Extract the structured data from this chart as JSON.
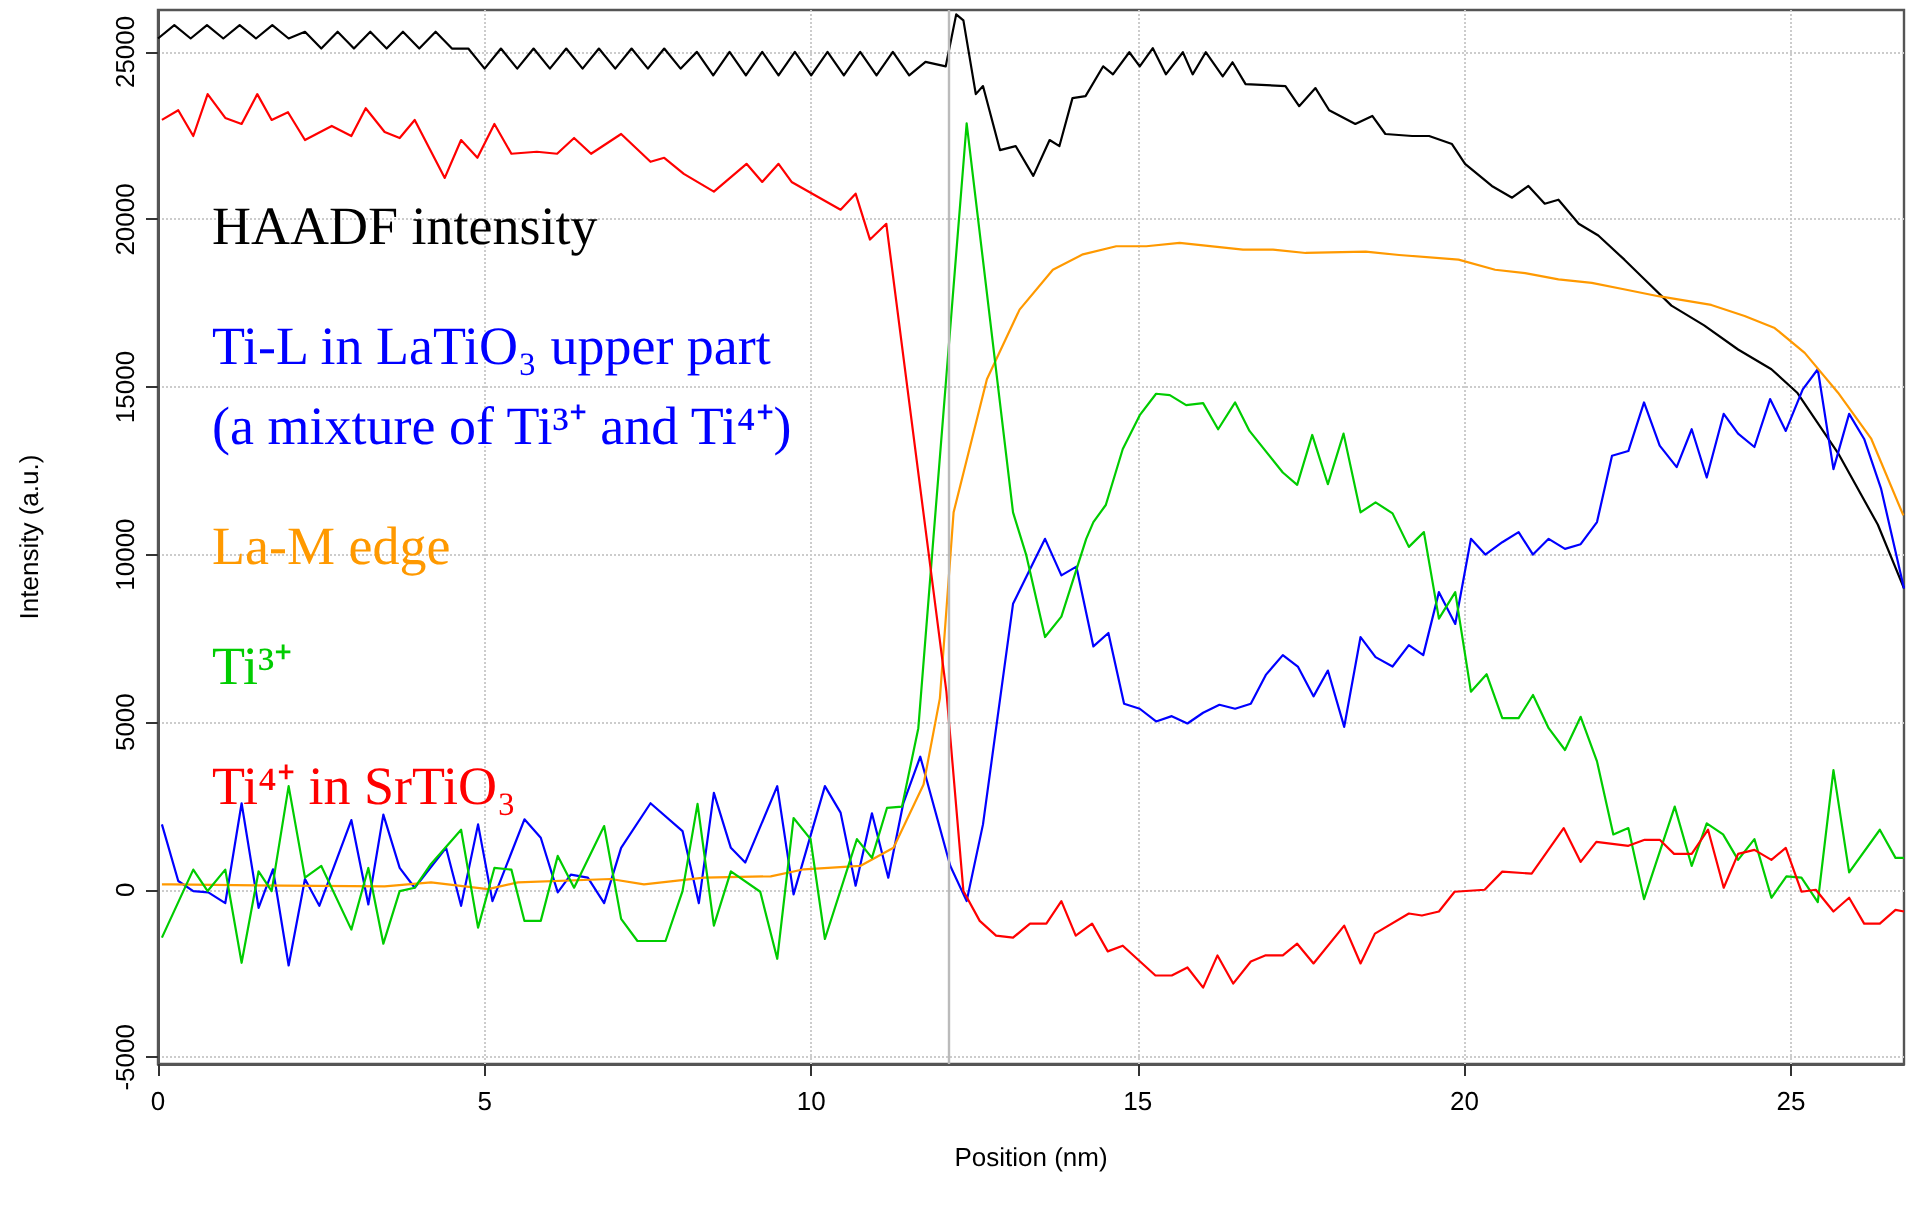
{
  "chart_data": {
    "type": "line",
    "xlabel": "Position (nm)",
    "ylabel": "Intensity (a.u.)",
    "xlim": [
      0,
      26.73
    ],
    "xticks": [
      0,
      5,
      10,
      15,
      20,
      25
    ],
    "ylim": [
      -5200,
      26250
    ],
    "yticks": [
      -5000,
      0,
      5000,
      10000,
      15000,
      20000,
      25000
    ],
    "grid": true,
    "legend": "top left",
    "marker": "none",
    "line_style": "solid",
    "ref_lines": [
      {
        "axis": "x",
        "value": 12.1,
        "color": "#bbbbbb"
      }
    ],
    "series": [
      {
        "name": "HAADF intensity",
        "color": "#000000",
        "x": [
          0,
          0.25,
          0.5,
          0.75,
          1,
          1.25,
          1.5,
          1.75,
          2,
          2.25,
          2.5,
          2.75,
          3,
          3.25,
          3.5,
          3.75,
          4,
          4.25,
          4.5,
          4.75,
          5,
          5.25,
          5.5,
          5.75,
          6,
          6.25,
          6.5,
          6.75,
          7,
          7.25,
          7.5,
          7.75,
          8,
          8.25,
          8.5,
          8.75,
          9,
          9.25,
          9.5,
          9.75,
          10,
          10.25,
          10.5,
          10.75,
          11,
          11.25,
          11.5,
          11.75,
          12.06,
          12.22,
          12.33,
          12.52,
          12.63,
          12.89,
          13.13,
          13.4,
          13.65,
          13.8,
          14.0,
          14.2,
          14.47,
          14.62,
          14.87,
          15.03,
          15.23,
          15.43,
          15.69,
          15.84,
          16.04,
          16.3,
          16.45,
          16.65,
          17.26,
          17.47,
          17.72,
          17.93,
          18.33,
          18.59,
          18.79,
          19.2,
          19.46,
          19.81,
          20.01,
          20.42,
          20.73,
          20.98,
          21.23,
          21.44,
          21.75,
          22.05,
          22.45,
          22.76,
          23.17,
          23.67,
          24.19,
          24.7,
          25.1,
          25.72,
          26.33,
          26.73
        ],
        "values": [
          25400,
          25800,
          25400,
          25800,
          25400,
          25800,
          25400,
          25800,
          25400,
          25600,
          25100,
          25600,
          25100,
          25600,
          25100,
          25600,
          25100,
          25600,
          25100,
          25100,
          24500,
          25100,
          24500,
          25100,
          24500,
          25100,
          24500,
          25100,
          24500,
          25100,
          24500,
          25100,
          24500,
          25000,
          24300,
          25000,
          24300,
          25000,
          24300,
          25000,
          24300,
          25000,
          24300,
          25000,
          24300,
          25000,
          24300,
          24700,
          24570,
          26120,
          25940,
          23740,
          23980,
          22070,
          22190,
          21300,
          22370,
          22190,
          23620,
          23680,
          24570,
          24330,
          24990,
          24570,
          25110,
          24330,
          24990,
          24330,
          24990,
          24270,
          24690,
          24040,
          23980,
          23380,
          23920,
          23260,
          22850,
          23090,
          22550,
          22490,
          22490,
          22250,
          21660,
          21000,
          20650,
          21000,
          20470,
          20590,
          19870,
          19520,
          18800,
          18210,
          17430,
          16840,
          16120,
          15530,
          14820,
          13030,
          10890,
          8990
        ]
      },
      {
        "name": "Ti-L in LaTiO₃ upper part\n(a mixture of Ti³⁺ and Ti⁴⁺)",
        "color": "#0000ff",
        "x": [
          0.06,
          0.31,
          0.54,
          0.77,
          1.03,
          1.28,
          1.54,
          1.76,
          2.0,
          2.25,
          2.47,
          2.96,
          3.22,
          3.45,
          3.7,
          3.93,
          4.41,
          4.64,
          4.9,
          5.12,
          5.61,
          5.86,
          6.12,
          6.32,
          6.58,
          6.83,
          7.09,
          7.54,
          8.03,
          8.28,
          8.51,
          8.77,
          8.99,
          9.48,
          9.73,
          10.21,
          10.45,
          10.68,
          10.93,
          11.18,
          11.41,
          11.67,
          12.13,
          12.38,
          12.63,
          13.09,
          13.58,
          13.83,
          14.06,
          14.32,
          14.55,
          14.79,
          15.03,
          15.28,
          15.52,
          15.76,
          16.0,
          16.25,
          16.49,
          16.73,
          16.96,
          17.22,
          17.45,
          17.69,
          17.91,
          18.16,
          18.41,
          18.64,
          18.9,
          19.15,
          19.37,
          19.61,
          19.86,
          20.1,
          20.32,
          20.58,
          20.83,
          21.05,
          21.29,
          21.54,
          21.78,
          22.03,
          22.26,
          22.51,
          22.75,
          22.99,
          23.25,
          23.48,
          23.71,
          23.97,
          24.19,
          24.44,
          24.68,
          24.92,
          25.18,
          25.41,
          25.65,
          25.89,
          26.12,
          26.38,
          26.73
        ],
        "values": [
          1950,
          260,
          -40,
          -80,
          -400,
          2580,
          -540,
          610,
          -2260,
          320,
          -480,
          2080,
          -440,
          2240,
          650,
          60,
          1250,
          -480,
          1950,
          -340,
          2100,
          1550,
          -80,
          450,
          360,
          -400,
          1250,
          2580,
          1750,
          -400,
          2890,
          1250,
          810,
          3090,
          -140,
          3090,
          2300,
          120,
          2280,
          360,
          2580,
          3970,
          710,
          -340,
          1950,
          8530,
          10470,
          9380,
          9640,
          7260,
          7660,
          5550,
          5400,
          5020,
          5180,
          4960,
          5280,
          5520,
          5400,
          5550,
          6410,
          7000,
          6660,
          5770,
          6540,
          4860,
          7540,
          6940,
          6660,
          7300,
          7000,
          8880,
          7930,
          10470,
          10000,
          10370,
          10670,
          10000,
          10470,
          10170,
          10310,
          10970,
          12950,
          13090,
          14540,
          13250,
          12610,
          13740,
          12300,
          14200,
          13610,
          13210,
          14640,
          13690,
          14930,
          15530,
          12550,
          14200,
          13450,
          11960,
          8990
        ]
      },
      {
        "name": "La-M edge",
        "color": "#ff9900",
        "x": [
          0.06,
          0.21,
          1.94,
          3.47,
          4.18,
          5.05,
          5.51,
          6.93,
          7.44,
          8.36,
          9.38,
          9.89,
          10.75,
          11.26,
          11.72,
          11.97,
          12.18,
          12.69,
          13.19,
          13.7,
          14.16,
          14.67,
          15.13,
          15.64,
          16.61,
          17.07,
          17.57,
          18.49,
          19.0,
          19.91,
          20.47,
          20.93,
          21.44,
          21.95,
          22.46,
          22.97,
          23.78,
          24.29,
          24.75,
          25.21,
          25.72,
          26.23,
          26.72
        ],
        "values": [
          160,
          160,
          120,
          100,
          220,
          20,
          220,
          320,
          160,
          360,
          400,
          610,
          710,
          1250,
          3140,
          5710,
          11260,
          15230,
          17310,
          18500,
          18960,
          19200,
          19200,
          19300,
          19100,
          19100,
          19000,
          19040,
          18940,
          18800,
          18500,
          18400,
          18210,
          18110,
          17910,
          17710,
          17450,
          17120,
          16760,
          16020,
          14830,
          13450,
          11170
        ]
      },
      {
        "name": "Ti³⁺",
        "color": "#00cc00",
        "x": [
          0.06,
          0.54,
          0.76,
          1.03,
          1.28,
          1.54,
          1.74,
          2.0,
          2.25,
          2.5,
          2.96,
          3.22,
          3.45,
          3.7,
          3.93,
          4.18,
          4.64,
          4.9,
          5.15,
          5.41,
          5.61,
          5.86,
          6.12,
          6.37,
          6.83,
          7.09,
          7.34,
          7.77,
          8.03,
          8.26,
          8.51,
          8.77,
          9.22,
          9.48,
          9.73,
          9.99,
          10.21,
          10.7,
          10.93,
          11.16,
          11.39,
          11.64,
          11.87,
          12.38,
          13.09,
          13.29,
          13.58,
          13.83,
          14.21,
          14.32,
          14.51,
          14.77,
          15.03,
          15.28,
          15.49,
          15.74,
          16.0,
          16.23,
          16.49,
          16.71,
          17.22,
          17.44,
          17.67,
          17.91,
          18.15,
          18.41,
          18.64,
          18.9,
          19.15,
          19.38,
          19.61,
          19.86,
          20.1,
          20.34,
          20.58,
          20.83,
          21.05,
          21.29,
          21.54,
          21.78,
          22.03,
          22.28,
          22.51,
          22.75,
          23.22,
          23.48,
          23.71,
          23.96,
          24.19,
          24.44,
          24.7,
          24.93,
          25.16,
          25.41,
          25.65,
          25.89,
          26.36,
          26.6,
          26.73
        ],
        "values": [
          -1430,
          600,
          -40,
          600,
          -2180,
          550,
          -40,
          3090,
          360,
          710,
          -1190,
          650,
          -1610,
          -40,
          60,
          770,
          1790,
          -1130,
          650,
          600,
          -930,
          -930,
          1010,
          60,
          1900,
          -870,
          -1530,
          -1530,
          -40,
          2560,
          -1070,
          550,
          -60,
          -2060,
          2140,
          1510,
          -1470,
          1510,
          950,
          2440,
          2480,
          4820,
          10470,
          22870,
          11260,
          10000,
          7540,
          8150,
          10470,
          10970,
          11480,
          13150,
          14160,
          14800,
          14760,
          14460,
          14520,
          13740,
          14540,
          13690,
          12450,
          12080,
          13570,
          12100,
          13610,
          11260,
          11560,
          11230,
          10230,
          10670,
          8090,
          8880,
          5910,
          6430,
          5120,
          5120,
          5810,
          4820,
          4170,
          5160,
          3830,
          1650,
          1840,
          -280,
          2480,
          710,
          1980,
          1650,
          890,
          1510,
          -240,
          400,
          360,
          -370,
          3570,
          520,
          1790,
          950,
          950
        ]
      },
      {
        "name": "Ti⁴⁺ in SrTiO₃",
        "color": "#ff0000",
        "x": [
          0.06,
          0.31,
          0.54,
          0.76,
          1.03,
          1.28,
          1.52,
          1.74,
          1.99,
          2.25,
          2.66,
          2.96,
          3.18,
          3.47,
          3.7,
          3.93,
          4.39,
          4.64,
          4.89,
          5.15,
          5.41,
          5.8,
          6.11,
          6.37,
          6.63,
          7.09,
          7.54,
          7.75,
          8.05,
          8.51,
          9.01,
          9.25,
          9.5,
          9.7,
          10.45,
          10.68,
          10.9,
          11.15,
          12.07,
          12.33,
          12.58,
          12.83,
          13.09,
          13.35,
          13.6,
          13.83,
          14.05,
          14.3,
          14.54,
          14.77,
          15.27,
          15.52,
          15.76,
          16.0,
          16.22,
          16.46,
          16.73,
          16.95,
          17.22,
          17.44,
          17.69,
          18.16,
          18.41,
          18.63,
          19.15,
          19.35,
          19.61,
          19.85,
          20.31,
          20.58,
          21.03,
          21.52,
          21.78,
          22.02,
          22.51,
          22.76,
          22.99,
          23.21,
          23.48,
          23.73,
          23.97,
          24.19,
          24.44,
          24.7,
          24.92,
          25.16,
          25.38,
          25.65,
          25.89,
          26.12,
          26.36,
          26.6,
          26.73
        ],
        "values": [
          22970,
          23260,
          22490,
          23740,
          23030,
          22850,
          23740,
          22970,
          23200,
          22370,
          22790,
          22490,
          23320,
          22610,
          22430,
          22970,
          21240,
          22370,
          21840,
          22850,
          21960,
          22020,
          21960,
          22430,
          21960,
          22550,
          21720,
          21840,
          21360,
          20830,
          21660,
          21120,
          21660,
          21120,
          20290,
          20770,
          19400,
          19870,
          5910,
          -40,
          -930,
          -1370,
          -1430,
          -1010,
          -1010,
          -340,
          -1370,
          -1010,
          -1840,
          -1670,
          -2560,
          -2560,
          -2320,
          -2920,
          -1960,
          -2800,
          -2140,
          -1960,
          -1960,
          -1610,
          -2200,
          -1070,
          -2200,
          -1310,
          -710,
          -770,
          -650,
          -60,
          0,
          540,
          480,
          1840,
          830,
          1430,
          1310,
          1490,
          1490,
          1070,
          1070,
          1790,
          60,
          1070,
          1190,
          890,
          1250,
          -60,
          0,
          -650,
          -240,
          -1010,
          -1010,
          -600,
          -650
        ]
      }
    ]
  }
}
